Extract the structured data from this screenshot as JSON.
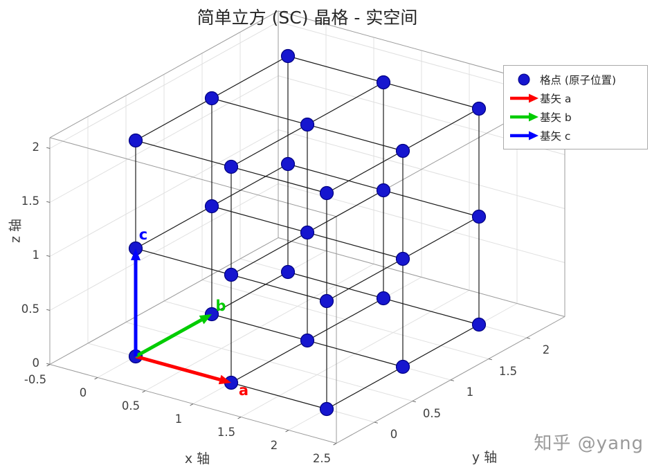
{
  "chart_data": {
    "type": "scatter",
    "projection": "3d",
    "title": "简单立方 (SC) 晶格 - 实空间",
    "xlabel": "x 轴",
    "ylabel": "y 轴",
    "zlabel": "z 轴",
    "xlim": [
      -0.5,
      2.5
    ],
    "ylim": [
      -0.5,
      2.5
    ],
    "zlim": [
      0,
      2.1
    ],
    "xticks": [
      "-0.5",
      "0",
      "0.5",
      "1",
      "1.5",
      "2",
      "2.5"
    ],
    "yticks": [
      "0",
      "0.5",
      "1",
      "1.5",
      "2"
    ],
    "zticks": [
      "0",
      "0.5",
      "1",
      "1.5",
      "2"
    ],
    "view": {
      "azimuth": -37.5,
      "elevation": 30
    },
    "grid": true,
    "lattice": {
      "n": 3,
      "spacing": 1,
      "edges": "nearest-neighbor"
    },
    "lattice_points": [
      [
        0,
        0,
        0
      ],
      [
        1,
        0,
        0
      ],
      [
        2,
        0,
        0
      ],
      [
        0,
        1,
        0
      ],
      [
        1,
        1,
        0
      ],
      [
        2,
        1,
        0
      ],
      [
        0,
        2,
        0
      ],
      [
        1,
        2,
        0
      ],
      [
        2,
        2,
        0
      ],
      [
        0,
        0,
        1
      ],
      [
        1,
        0,
        1
      ],
      [
        2,
        0,
        1
      ],
      [
        0,
        1,
        1
      ],
      [
        1,
        1,
        1
      ],
      [
        2,
        1,
        1
      ],
      [
        0,
        2,
        1
      ],
      [
        1,
        2,
        1
      ],
      [
        2,
        2,
        1
      ],
      [
        0,
        0,
        2
      ],
      [
        1,
        0,
        2
      ],
      [
        2,
        0,
        2
      ],
      [
        0,
        1,
        2
      ],
      [
        1,
        1,
        2
      ],
      [
        2,
        1,
        2
      ],
      [
        0,
        2,
        2
      ],
      [
        1,
        2,
        2
      ],
      [
        2,
        2,
        2
      ]
    ],
    "marker": {
      "color": "#1616cf",
      "edge_color": "#000080",
      "size": 10
    },
    "basis_vectors": [
      {
        "label": "a",
        "color": "#ff0000",
        "from": [
          0,
          0,
          0
        ],
        "to": [
          1,
          0,
          0
        ]
      },
      {
        "label": "b",
        "color": "#00cc00",
        "from": [
          0,
          0,
          0
        ],
        "to": [
          0,
          1,
          0
        ]
      },
      {
        "label": "c",
        "color": "#0000ff",
        "from": [
          0,
          0,
          0
        ],
        "to": [
          0,
          0,
          1
        ]
      }
    ],
    "legend": {
      "position": "top-right",
      "items": [
        {
          "marker": "dot",
          "color": "#1616cf",
          "label": "格点 (原子位置)"
        },
        {
          "marker": "arrow",
          "color": "#ff0000",
          "label": "基矢 a"
        },
        {
          "marker": "arrow",
          "color": "#00cc00",
          "label": "基矢 b"
        },
        {
          "marker": "arrow",
          "color": "#0000ff",
          "label": "基矢 c"
        }
      ]
    },
    "watermark": "知乎 @yang"
  }
}
